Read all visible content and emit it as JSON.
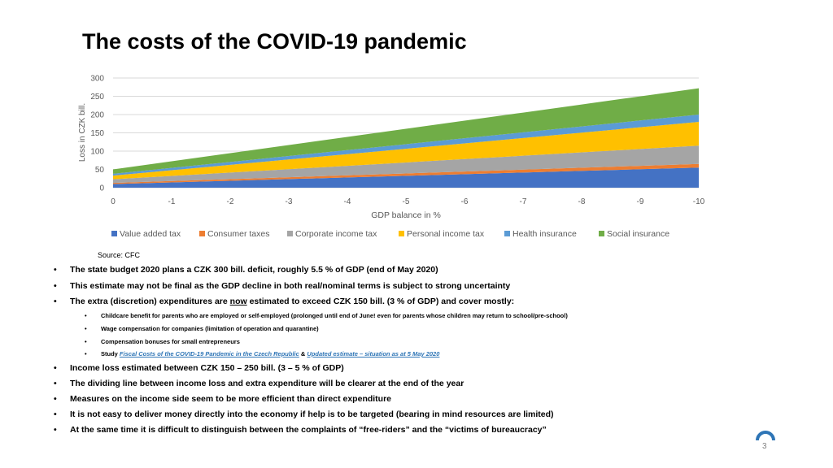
{
  "slide": {
    "title": "The costs of the COVID-19 pandemic",
    "source": "Source: CFC",
    "page_number": "3",
    "logo_icon": "cfc-arc-logo-icon",
    "link_color": "#2e75b6"
  },
  "chart_data": {
    "type": "area",
    "stacked": true,
    "xlabel": "GDP balance in %",
    "ylabel": "Loss in CZK bill.",
    "x": [
      0,
      -1,
      -2,
      -3,
      -4,
      -5,
      -6,
      -7,
      -8,
      -9,
      -10
    ],
    "x_tick_labels": [
      "0",
      "-1",
      "-2",
      "-3",
      "-4",
      "-5",
      "-6",
      "-7",
      "-8",
      "-9",
      "-10"
    ],
    "y_ticks": [
      0,
      50,
      100,
      150,
      200,
      250,
      300
    ],
    "y_tick_labels": [
      "0",
      "50",
      "100",
      "150",
      "200",
      "250",
      "300"
    ],
    "ylim": [
      0,
      300
    ],
    "grid": true,
    "legend_position": "bottom",
    "series": [
      {
        "name": "Value added tax",
        "color": "#4472c4",
        "values": [
          10,
          14.5,
          19,
          23.5,
          28,
          32.5,
          37,
          41.5,
          46,
          50.5,
          55
        ]
      },
      {
        "name": "Consumer taxes",
        "color": "#ed7d31",
        "values": [
          3,
          3.7,
          4.4,
          5.1,
          5.8,
          6.5,
          7.2,
          7.9,
          8.6,
          9.3,
          10
        ]
      },
      {
        "name": "Corporate income tax",
        "color": "#a5a5a5",
        "values": [
          10,
          14,
          18,
          22,
          26,
          30,
          34,
          38,
          42,
          46,
          50
        ]
      },
      {
        "name": "Personal income tax",
        "color": "#ffc000",
        "values": [
          10,
          15.5,
          21,
          26.5,
          32,
          37.5,
          43,
          48.5,
          54,
          59.5,
          65
        ]
      },
      {
        "name": "Health insurance",
        "color": "#5b9bd5",
        "values": [
          5,
          6.5,
          8,
          9.5,
          11,
          12.5,
          14,
          15.5,
          17,
          18.5,
          20
        ]
      },
      {
        "name": "Social insurance",
        "color": "#70ad47",
        "values": [
          12,
          18,
          24,
          30,
          36,
          42,
          48,
          54,
          60,
          66,
          72
        ]
      }
    ]
  },
  "bullets": {
    "b1": "The state budget 2020 plans a CZK 300 bill. deficit, roughly 5.5 % of GDP (end of May 2020)",
    "b2": "This estimate may not be final as the GDP decline in both real/nominal terms is subject to strong uncertainty",
    "b3_pre": "The extra (discretion) expenditures are ",
    "b3_now": "now",
    "b3_post": " estimated to exceed CZK 150 bill. (3 % of GDP) and cover mostly:",
    "s1": "Childcare benefit for parents who are employed or self-employed (prolonged until end of June! even for parents whose children may return to school/pre-school)",
    "s2": "Wage compensation for companies  (limitation of operation and quarantine)",
    "s3": "Compensation bonuses for small entrepreneurs",
    "s4_pre": "Study ",
    "s4_link1": "Fiscal Costs of the COVID-19 Pandemic in the Czech Republic",
    "s4_amp": " & ",
    "s4_link2": "Updated estimate – situation as at 5 May 2020",
    "b4": "Income loss estimated between CZK 150 – 250 bill. (3 – 5 % of GDP)",
    "b5": "The dividing line between income loss and extra expenditure will be clearer at the end of the year",
    "b6": "Measures on the income side seem to be more efficient than direct expenditure",
    "b7": "It is not easy to deliver money directly into the economy if help is to be targeted (bearing in mind resources are limited)",
    "b8": "At the same time it is difficult to distinguish between the complaints of “free-riders” and the “victims of bureaucracy”",
    "bullet_char": "•"
  }
}
